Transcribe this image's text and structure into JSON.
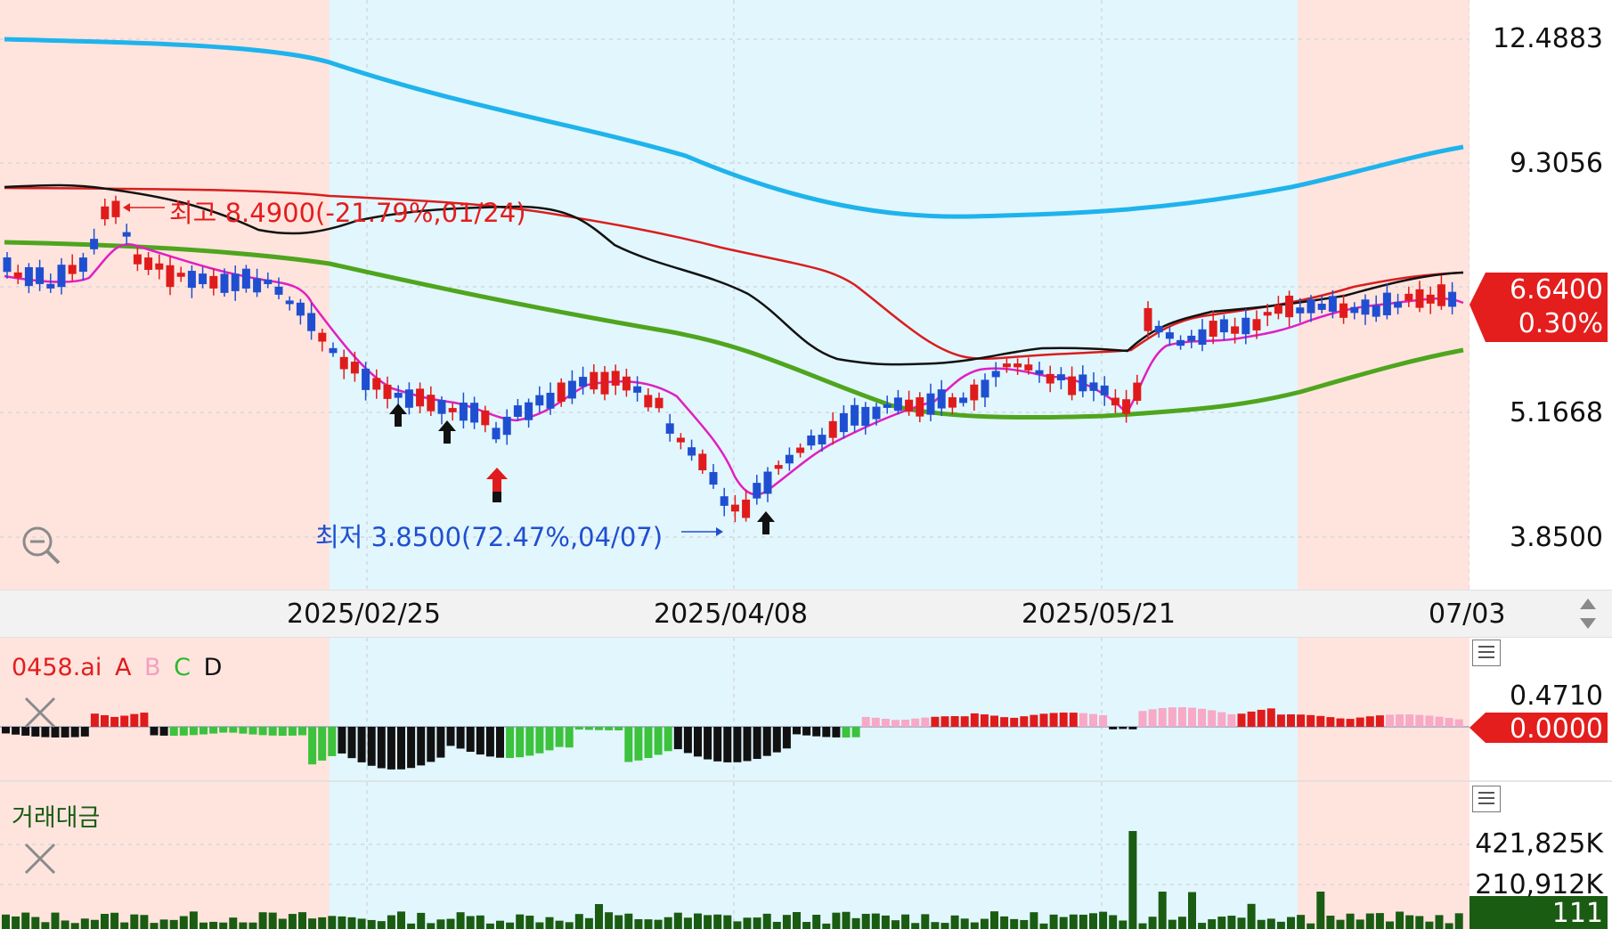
{
  "price_axis": {
    "ticks": [
      "12.4883",
      "9.3056",
      "5.1668",
      "3.8500"
    ],
    "current_price": "6.6400",
    "current_change": "0.30%"
  },
  "annotations": {
    "high": "최고 8.4900(-21.79%,01/24)",
    "low": "최저 3.8500(72.47%,04/07)"
  },
  "date_axis": {
    "labels": [
      "2025/02/25",
      "2025/04/08",
      "2025/05/21",
      "07/03"
    ]
  },
  "indicator_panel": {
    "name": "0458.ai",
    "legend": [
      {
        "label": "A",
        "color": "#e11a1a"
      },
      {
        "label": "B",
        "color": "#f4a0c0"
      },
      {
        "label": "C",
        "color": "#2db82d"
      },
      {
        "label": "D",
        "color": "#111111"
      }
    ],
    "top_value": "0.4710",
    "current_value": "0.0000"
  },
  "volume_panel": {
    "title": "거래대금",
    "ticks": [
      "421,825K",
      "210,912K"
    ],
    "current_value": "111"
  },
  "colors": {
    "up": "#e01b1b",
    "down": "#1f4fd0",
    "ma_blue": "#1fb3ec",
    "ma_green": "#4fa51e",
    "ma_red": "#d81e1e",
    "ma_black": "#111111",
    "ma_magenta": "#e020c0",
    "zone_pink": "#ffe4de",
    "zone_blue": "#e2f6fd",
    "volume": "#1a5c12",
    "label_red": "#e41d1d"
  },
  "icons": {
    "zoom_out": "magnifier-minus-icon",
    "close": "close-x-icon",
    "menu": "hamburger-menu-icon",
    "scroll": "up-down-arrows-icon"
  }
}
